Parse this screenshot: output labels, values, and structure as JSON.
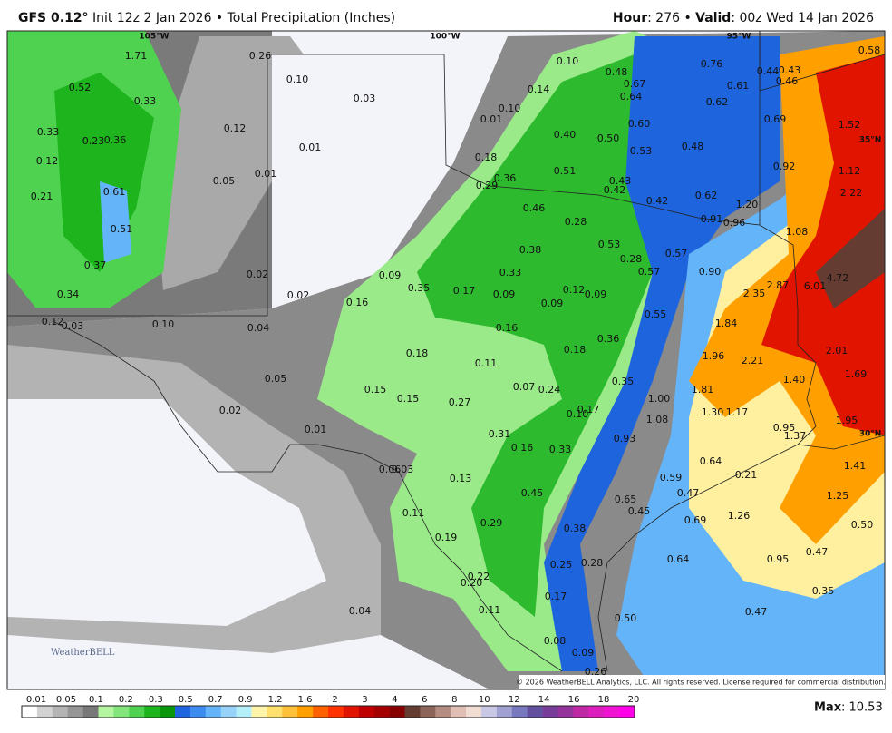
{
  "header": {
    "model": "GFS 0.12°",
    "left": " Init 12z 2 Jan 2026 • Total Precipitation (Inches)",
    "hour_key": "Hour",
    "hour_text": ": 276 • ",
    "valid_key": "Valid",
    "valid_text": ": 00z Wed 14 Jan 2026"
  },
  "axis_labels": [
    "105°W",
    "100°W",
    "95°W",
    "35°N",
    "30°N"
  ],
  "map_labels": [
    "1.71",
    "0.52",
    "0.33",
    "0.33",
    "0.23",
    "0.36",
    "0.12",
    "0.12",
    "0.21",
    "0.61",
    "0.51",
    "0.37",
    "0.34",
    "0.12",
    "0.03",
    "0.10",
    "0.26",
    "0.10",
    "0.03",
    "0.01",
    "0.05",
    "0.01",
    "0.02",
    "0.02",
    "0.04",
    "0.16",
    "0.09",
    "0.35",
    "0.17",
    "0.09",
    "0.33",
    "0.38",
    "0.12",
    "0.09",
    "0.09",
    "0.16",
    "0.18",
    "0.11",
    "0.18",
    "0.36",
    "0.15",
    "0.15",
    "0.27",
    "0.07",
    "0.24",
    "0.17",
    "0.10",
    "0.35",
    "0.05",
    "0.02",
    "0.01",
    "0.31",
    "0.16",
    "0.33",
    "0.93",
    "0.06",
    "0.03",
    "0.13",
    "0.45",
    "0.11",
    "0.29",
    "0.19",
    "0.38",
    "0.22",
    "0.20",
    "0.25",
    "0.28",
    "0.17",
    "0.50",
    "0.04",
    "0.11",
    "0.08",
    "0.09",
    "0.26",
    "0.10",
    "0.14",
    "0.48",
    "0.67",
    "0.64",
    "0.10",
    "0.01",
    "0.40",
    "0.50",
    "0.60",
    "0.53",
    "0.18",
    "0.51",
    "0.36",
    "0.29",
    "0.43",
    "0.42",
    "0.42",
    "0.46",
    "0.28",
    "0.53",
    "0.28",
    "0.57",
    "0.57",
    "0.55",
    "0.76",
    "0.61",
    "0.62",
    "0.48",
    "0.62",
    "0.91",
    "0.96",
    "1.20",
    "0.90",
    "0.44",
    "0.43",
    "0.46",
    "0.69",
    "0.58",
    "1.52",
    "0.92",
    "1.12",
    "2.22",
    "1.08",
    "2.35",
    "2.87",
    "6.01",
    "4.72",
    "1.84",
    "1.96",
    "2.21",
    "2.01",
    "1.40",
    "1.69",
    "1.81",
    "1.00",
    "1.30",
    "1.17",
    "1.08",
    "0.95",
    "1.37",
    "1.95",
    "0.64",
    "0.21",
    "0.59",
    "0.47",
    "0.65",
    "0.45",
    "0.69",
    "1.41",
    "1.25",
    "1.26",
    "0.50",
    "0.47",
    "0.95",
    "0.64",
    "0.35",
    "0.47"
  ],
  "copyright": "© 2026 WeatherBELL Analytics, LLC. All rights reserved. License required for commercial distribution.",
  "watermark": "WeatherBELL",
  "legend": {
    "labels": [
      "0.01",
      "0.05",
      "0.1",
      "0.2",
      "0.3",
      "0.5",
      "0.7",
      "0.9",
      "1.2",
      "1.6",
      "2",
      "3",
      "4",
      "6",
      "8",
      "10",
      "12",
      "14",
      "16",
      "18",
      "20"
    ],
    "colors": [
      "#ffffff",
      "#d2d2d2",
      "#b4b4b4",
      "#969696",
      "#787878",
      "#b4f5a0",
      "#82e67a",
      "#50d250",
      "#1eb41e",
      "#0a960a",
      "#1e64dc",
      "#3c8cf0",
      "#64b4fa",
      "#96d2fa",
      "#b4f0fa",
      "#fff5aa",
      "#ffe06e",
      "#ffc03c",
      "#ffa000",
      "#ff6000",
      "#ff3200",
      "#e11400",
      "#c00000",
      "#a50000",
      "#870000",
      "#643c32",
      "#8c645a",
      "#b48c82",
      "#e1beb4",
      "#f0dcd2",
      "#c8c8e6",
      "#a0a0d2",
      "#7878be",
      "#6450a0",
      "#783c9b",
      "#96329b",
      "#be28a5",
      "#dc1ebe",
      "#f014d2",
      "#ff00e6"
    ]
  },
  "max_key": "Max",
  "max_text": ": 10.53"
}
